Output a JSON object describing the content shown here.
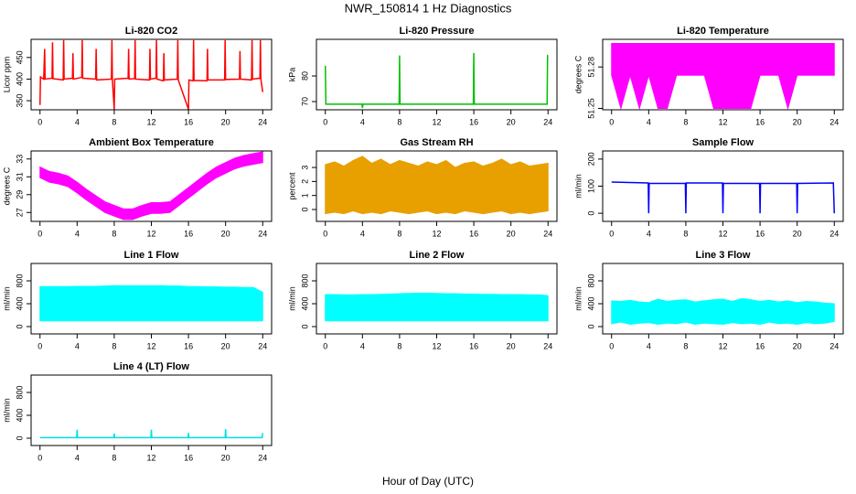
{
  "title": "NWR_150814  1 Hz Diagnostics",
  "x_label": "Hour of Day (UTC)",
  "chart_data": [
    {
      "type": "line",
      "title": "Li-820 CO2",
      "y_label": "Licor ppm",
      "color": "#ff0000",
      "x": [
        0,
        0.05,
        0.4,
        0.5,
        0.55,
        1.3,
        1.35,
        1.4,
        2.5,
        2.55,
        2.6,
        3.5,
        3.55,
        3.6,
        4.5,
        4.55,
        4.6,
        6,
        6.05,
        6.1,
        7.7,
        7.75,
        7.8,
        8,
        8.05,
        9.5,
        9.55,
        9.6,
        10.2,
        10.25,
        10.3,
        11.8,
        11.85,
        11.9,
        12.5,
        12.55,
        12.6,
        13.3,
        13.35,
        13.4,
        14.8,
        14.85,
        14.9,
        16,
        16.05,
        16.5,
        16.55,
        16.6,
        18,
        18.05,
        18.1,
        19.9,
        19.95,
        20,
        21.5,
        21.55,
        21.6,
        22.8,
        22.85,
        22.9,
        23.7,
        23.75,
        23.8,
        24
      ],
      "values": [
        340,
        405,
        400,
        470,
        400,
        402,
        485,
        401,
        398,
        490,
        400,
        402,
        460,
        400,
        404,
        490,
        402,
        400,
        470,
        398,
        400,
        490,
        399,
        330,
        400,
        402,
        470,
        400,
        401,
        490,
        400,
        398,
        470,
        400,
        402,
        490,
        400,
        396,
        460,
        398,
        400,
        490,
        398,
        330,
        398,
        396,
        490,
        397,
        396,
        470,
        398,
        398,
        490,
        399,
        400,
        465,
        400,
        398,
        490,
        400,
        402,
        490,
        400,
        370
      ],
      "xlim": [
        -0.96,
        24.96
      ],
      "xticks": [
        0,
        4,
        8,
        12,
        16,
        20,
        24
      ],
      "ylim": [
        329,
        492
      ],
      "yticks": [
        350,
        400,
        450
      ]
    },
    {
      "type": "line",
      "title": "Li-820 Pressure",
      "y_label": "kPa",
      "color": "#00c000",
      "x": [
        0,
        0.03,
        0.06,
        0.2,
        3.95,
        4,
        4.05,
        7.95,
        8,
        8.05,
        15.95,
        16,
        16.05,
        23.9,
        23.95,
        24
      ],
      "values": [
        84,
        76,
        69,
        69,
        69,
        67.5,
        69,
        69,
        88,
        69,
        69,
        89,
        69,
        69,
        88,
        88
      ],
      "xlim": [
        -0.96,
        24.96
      ],
      "xticks": [
        0,
        4,
        8,
        12,
        16,
        20,
        24
      ],
      "ylim": [
        66.8,
        94.3
      ],
      "yticks": [
        70,
        80
      ]
    },
    {
      "type": "range",
      "title": "Li-820 Temperature",
      "y_label": "degrees C",
      "color": "#ff00ff",
      "x": [
        0,
        1,
        2,
        3,
        4,
        5,
        6,
        7,
        8,
        9,
        10,
        11,
        12,
        13,
        14,
        15,
        16,
        17,
        18,
        19,
        20,
        21,
        22,
        23,
        24
      ],
      "low": [
        51.274,
        51.25,
        51.274,
        51.25,
        51.274,
        51.25,
        51.25,
        51.274,
        51.274,
        51.274,
        51.274,
        51.25,
        51.25,
        51.25,
        51.25,
        51.25,
        51.274,
        51.274,
        51.274,
        51.25,
        51.274,
        51.274,
        51.274,
        51.274,
        51.274
      ],
      "high": [
        51.297,
        51.297,
        51.297,
        51.297,
        51.297,
        51.297,
        51.297,
        51.297,
        51.297,
        51.297,
        51.297,
        51.297,
        51.297,
        51.297,
        51.297,
        51.297,
        51.297,
        51.297,
        51.297,
        51.297,
        51.297,
        51.297,
        51.297,
        51.297,
        51.297
      ],
      "xlim": [
        -0.96,
        24.96
      ],
      "xticks": [
        0,
        4,
        8,
        12,
        16,
        20,
        24
      ],
      "ylim": [
        51.249,
        51.3
      ],
      "yticks": [
        51.25,
        51.28
      ]
    },
    {
      "type": "range",
      "title": "Ambient Box Temperature",
      "y_label": "degrees C",
      "color": "#ff00ff",
      "x": [
        0,
        1,
        2,
        3,
        4,
        5,
        6,
        7,
        8,
        9,
        10,
        11,
        12,
        13,
        14,
        15,
        16,
        17,
        18,
        19,
        20,
        21,
        22,
        23,
        24
      ],
      "low": [
        30.9,
        30.4,
        30.2,
        29.9,
        29.2,
        28.4,
        27.7,
        27,
        26.6,
        26.2,
        26.2,
        26.6,
        26.9,
        26.9,
        27,
        27.8,
        28.6,
        29.4,
        30.2,
        30.9,
        31.4,
        31.9,
        32.2,
        32.4,
        32.6
      ],
      "high": [
        32.1,
        31.6,
        31.4,
        31.1,
        30.4,
        29.6,
        28.9,
        28.2,
        27.8,
        27.4,
        27.4,
        27.8,
        28.1,
        28.1,
        28.2,
        29,
        29.8,
        30.6,
        31.4,
        32.1,
        32.6,
        33.1,
        33.4,
        33.6,
        33.8
      ],
      "xlim": [
        -0.96,
        24.96
      ],
      "xticks": [
        0,
        4,
        8,
        12,
        16,
        20,
        24
      ],
      "ylim": [
        26.0,
        33.9
      ],
      "yticks": [
        27,
        29,
        31,
        33
      ]
    },
    {
      "type": "range",
      "title": "Gas Stream RH",
      "y_label": "percent",
      "color": "#e8a000",
      "x": [
        0,
        1,
        2,
        3,
        4,
        5,
        6,
        7,
        8,
        9,
        10,
        11,
        12,
        13,
        14,
        15,
        16,
        17,
        18,
        19,
        20,
        21,
        22,
        23,
        24
      ],
      "low": [
        -0.3,
        -0.2,
        -0.3,
        -0.1,
        -0.3,
        -0.2,
        -0.3,
        -0.1,
        -0.2,
        -0.3,
        -0.2,
        -0.1,
        -0.3,
        -0.2,
        -0.3,
        -0.1,
        -0.2,
        -0.3,
        -0.2,
        -0.1,
        -0.3,
        -0.2,
        -0.3,
        -0.2,
        -0.1
      ],
      "high": [
        3.2,
        3.4,
        3.1,
        3.5,
        3.8,
        3.3,
        3.6,
        3.2,
        3.5,
        3.3,
        3.1,
        3.4,
        3.2,
        3.5,
        3.0,
        3.3,
        3.4,
        3.1,
        3.3,
        3.6,
        3.2,
        3.4,
        3.1,
        3.2,
        3.3
      ],
      "xlim": [
        -0.96,
        24.96
      ],
      "xticks": [
        0,
        4,
        8,
        12,
        16,
        20,
        24
      ],
      "ylim": [
        -0.85,
        4.18
      ],
      "yticks": [
        0,
        1,
        2,
        3
      ]
    },
    {
      "type": "line",
      "title": "Sample Flow",
      "y_label": "ml/min",
      "color": "#0000ff",
      "x": [
        0,
        3.95,
        4,
        4.05,
        7.95,
        8,
        8.05,
        11.95,
        12,
        12.05,
        15.95,
        16,
        16.05,
        19.95,
        20,
        20.05,
        23.9,
        24
      ],
      "values": [
        115,
        112,
        0,
        110,
        110,
        0,
        112,
        112,
        0,
        110,
        110,
        0,
        110,
        110,
        0,
        110,
        112,
        0
      ],
      "xlim": [
        -0.96,
        24.96
      ],
      "xticks": [
        0,
        4,
        8,
        12,
        16,
        20,
        24
      ],
      "ylim": [
        -30,
        230
      ],
      "yticks": [
        0,
        100,
        200
      ]
    },
    {
      "type": "range",
      "title": "Line 1 Flow",
      "y_label": "ml/min",
      "color": "#00ffff",
      "x": [
        0,
        1,
        2,
        3,
        4,
        5,
        6,
        7,
        8,
        9,
        10,
        11,
        12,
        13,
        14,
        15,
        16,
        17,
        18,
        19,
        20,
        21,
        22,
        23,
        24
      ],
      "low": [
        100,
        100,
        100,
        100,
        100,
        100,
        100,
        100,
        100,
        100,
        100,
        100,
        100,
        100,
        100,
        100,
        100,
        100,
        100,
        100,
        100,
        100,
        100,
        100,
        100
      ],
      "high": [
        700,
        700,
        700,
        700,
        705,
        705,
        705,
        710,
        715,
        715,
        715,
        715,
        715,
        715,
        710,
        710,
        700,
        700,
        695,
        695,
        690,
        690,
        685,
        685,
        600
      ],
      "xlim": [
        -0.96,
        24.96
      ],
      "xticks": [
        0,
        4,
        8,
        12,
        16,
        20,
        24
      ],
      "ylim": [
        -128,
        1104
      ],
      "yticks": [
        0,
        400,
        800
      ]
    },
    {
      "type": "range",
      "title": "Line 2 Flow",
      "y_label": "ml/min",
      "color": "#00ffff",
      "x": [
        0,
        1,
        2,
        3,
        4,
        5,
        6,
        7,
        8,
        9,
        10,
        11,
        12,
        13,
        14,
        15,
        16,
        17,
        18,
        19,
        20,
        21,
        22,
        23,
        24
      ],
      "low": [
        100,
        100,
        100,
        100,
        100,
        100,
        100,
        100,
        100,
        100,
        100,
        100,
        100,
        100,
        100,
        100,
        100,
        100,
        100,
        100,
        100,
        100,
        100,
        100,
        100
      ],
      "high": [
        560,
        560,
        555,
        555,
        560,
        560,
        565,
        570,
        575,
        580,
        585,
        585,
        580,
        575,
        575,
        570,
        570,
        565,
        565,
        560,
        560,
        560,
        555,
        555,
        540
      ],
      "xlim": [
        -0.96,
        24.96
      ],
      "xticks": [
        0,
        4,
        8,
        12,
        16,
        20,
        24
      ],
      "ylim": [
        -128,
        1104
      ],
      "yticks": [
        0,
        400,
        800
      ]
    },
    {
      "type": "range",
      "title": "Line 3 Flow",
      "y_label": "ml/min",
      "color": "#00ffff",
      "x": [
        0,
        1,
        2,
        3,
        4,
        5,
        6,
        7,
        8,
        9,
        10,
        11,
        12,
        13,
        14,
        15,
        16,
        17,
        18,
        19,
        20,
        21,
        22,
        23,
        24
      ],
      "low": [
        50,
        80,
        40,
        60,
        70,
        40,
        60,
        50,
        80,
        40,
        60,
        50,
        40,
        70,
        50,
        60,
        40,
        80,
        50,
        60,
        40,
        70,
        50,
        60,
        90
      ],
      "high": [
        450,
        440,
        460,
        430,
        420,
        480,
        440,
        460,
        470,
        430,
        450,
        470,
        480,
        440,
        490,
        470,
        440,
        460,
        430,
        450,
        420,
        440,
        430,
        410,
        400
      ],
      "xlim": [
        -0.96,
        24.96
      ],
      "xticks": [
        0,
        4,
        8,
        12,
        16,
        20,
        24
      ],
      "ylim": [
        -128,
        1104
      ],
      "yticks": [
        0,
        400,
        800
      ]
    },
    {
      "type": "line",
      "title": "Line 4 (LT) Flow",
      "y_label": "ml/min",
      "color": "#00e0e0",
      "x": [
        0,
        3.95,
        4,
        4.05,
        7.95,
        8,
        8.05,
        11.95,
        12,
        12.05,
        15.95,
        16,
        16.05,
        19.95,
        20,
        20.05,
        23.95,
        24
      ],
      "values": [
        10,
        10,
        150,
        10,
        10,
        80,
        10,
        10,
        150,
        10,
        10,
        90,
        10,
        10,
        160,
        10,
        10,
        90
      ],
      "xlim": [
        -0.96,
        24.96
      ],
      "xticks": [
        0,
        4,
        8,
        12,
        16,
        20,
        24
      ],
      "ylim": [
        -128,
        1104
      ],
      "yticks": [
        0,
        400,
        800
      ]
    }
  ]
}
